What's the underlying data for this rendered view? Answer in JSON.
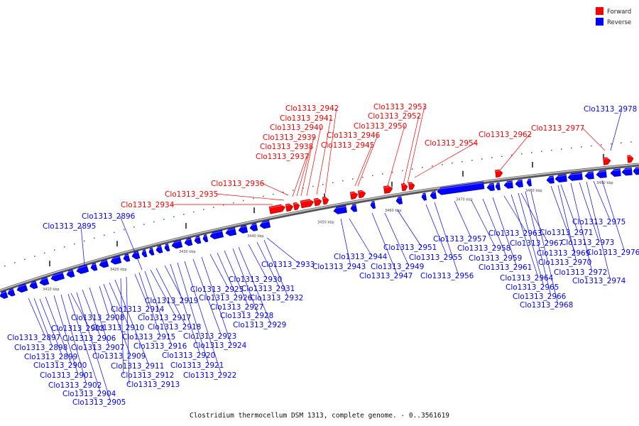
{
  "legend": {
    "forward_label": "Forward",
    "reverse_label": "Reverse",
    "forward_color": "#ff0000",
    "reverse_color": "#0000ff"
  },
  "caption": "Clostridium thermocellum DSM 1313, complete genome. - 0..3561619",
  "track": {
    "start_label": "3410 kbp",
    "ticks": [
      "3410 kbp",
      "3420 kbp",
      "3430 kbp",
      "3440 kbp",
      "3450 kbp",
      "3460 kbp",
      "3470 kbp",
      "3480 kbp",
      "3490 kbp"
    ]
  },
  "forward_genes": [
    "Clo1313_2934",
    "Clo1313_2935",
    "Clo1313_2936",
    "Clo1313_2937",
    "Clo1313_2938",
    "Clo1313_2939",
    "Clo1313_2940",
    "Clo1313_2941",
    "Clo1313_2942",
    "Clo1313_2945",
    "Clo1313_2946",
    "Clo1313_2950",
    "Clo1313_2952",
    "Clo1313_2953",
    "Clo1313_2954",
    "Clo1313_2962",
    "Clo1313_2977"
  ],
  "reverse_genes": [
    "Clo1313_2895",
    "Clo1313_2896",
    "Clo1313_2897",
    "Clo1313_2898",
    "Clo1313_2899",
    "Clo1313_2900",
    "Clo1313_2901",
    "Clo1313_2902",
    "Clo1313_2903",
    "Clo1313_2904",
    "Clo1313_2905",
    "Clo1313_2906",
    "Clo1313_2907",
    "Clo1313_2908",
    "Clo1313_2909",
    "Clo1313_2910",
    "Clo1313_2911",
    "Clo1313_2912",
    "Clo1313_2913",
    "Clo1313_2914",
    "Clo1313_2915",
    "Clo1313_2916",
    "Clo1313_2917",
    "Clo1313_2918",
    "Clo1313_2919",
    "Clo1313_2920",
    "Clo1313_2921",
    "Clo1313_2922",
    "Clo1313_2923",
    "Clo1313_2924",
    "Clo1313_2925",
    "Clo1313_2926",
    "Clo1313_2927",
    "Clo1313_2928",
    "Clo1313_2929",
    "Clo1313_2930",
    "Clo1313_2931",
    "Clo1313_2932",
    "Clo1313_2933",
    "Clo1313_2943",
    "Clo1313_2944",
    "Clo1313_2947",
    "Clo1313_2949",
    "Clo1313_2951",
    "Clo1313_2955",
    "Clo1313_2956",
    "Clo1313_2957",
    "Clo1313_2958",
    "Clo1313_2959",
    "Clo1313_2961",
    "Clo1313_2963",
    "Clo1313_2964",
    "Clo1313_2965",
    "Clo1313_2966",
    "Clo1313_2967",
    "Clo1313_2968",
    "Clo1313_2969",
    "Clo1313_2970",
    "Clo1313_2971",
    "Clo1313_2972",
    "Clo1313_2973",
    "Clo1313_2974",
    "Clo1313_2975",
    "Clo1313_2976",
    "Clo1313_2978"
  ]
}
